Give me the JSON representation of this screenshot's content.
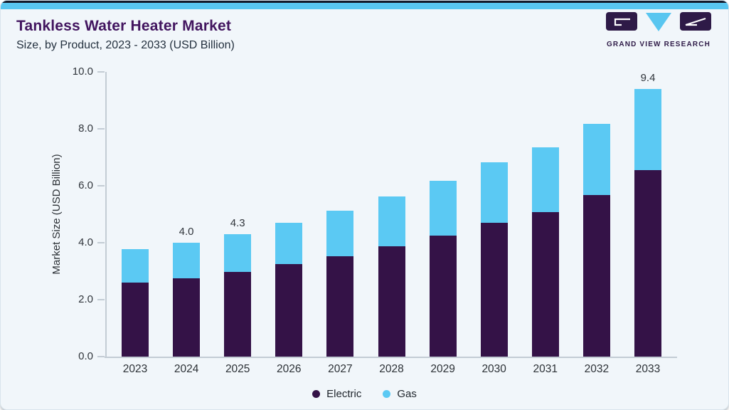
{
  "header": {
    "title": "Tankless Water Heater Market",
    "subtitle": "Size, by Product, 2023 - 2033 (USD Billion)"
  },
  "logo": {
    "text": "GRAND VIEW RESEARCH",
    "tile_color": "#2e1a47",
    "triangle_color": "#59c6f0"
  },
  "colors": {
    "electric": "#341247",
    "gas": "#5bc9f3",
    "background": "#f1f6fa",
    "axis": "#c3ccd4",
    "title": "#42155f"
  },
  "chart_data": {
    "type": "bar",
    "stacked": true,
    "title": "Tankless Water Heater Market Size, by Product, 2023 - 2033 (USD Billion)",
    "categories": [
      "2023",
      "2024",
      "2025",
      "2026",
      "2027",
      "2028",
      "2029",
      "2030",
      "2031",
      "2032",
      "2033"
    ],
    "series": [
      {
        "name": "Electric",
        "color": "#341247",
        "values": [
          2.6,
          2.76,
          2.97,
          3.24,
          3.53,
          3.87,
          4.26,
          4.71,
          5.07,
          5.68,
          6.55
        ]
      },
      {
        "name": "Gas",
        "color": "#5bc9f3",
        "values": [
          1.17,
          1.24,
          1.33,
          1.46,
          1.59,
          1.75,
          1.91,
          2.12,
          2.28,
          2.5,
          2.85
        ]
      }
    ],
    "totals": [
      3.77,
      4.0,
      4.3,
      4.7,
      5.12,
      5.62,
      6.17,
      6.83,
      7.35,
      8.18,
      9.4
    ],
    "bar_labels": {
      "2024": "4.0",
      "2025": "4.3",
      "2033": "9.4"
    },
    "xlabel": "",
    "ylabel": "Market Size (USD Billion)",
    "ylim": [
      0,
      10
    ],
    "y_ticks": [
      0,
      2,
      4,
      6,
      8,
      10
    ],
    "y_tick_labels": [
      "0.0",
      "2.0",
      "4.0",
      "6.0",
      "8.0",
      "10.0"
    ],
    "grid": false,
    "legend_position": "bottom"
  }
}
